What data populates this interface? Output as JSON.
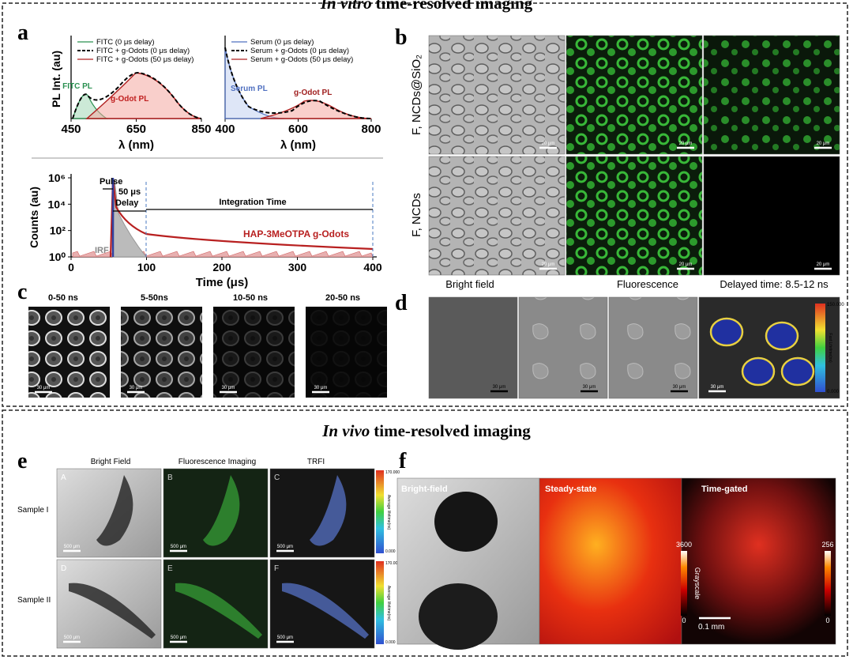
{
  "in_vitro_title": {
    "italic": "In vitro",
    "rest": "time-resolved imaging"
  },
  "in_vivo_title": {
    "italic": "In vivo",
    "rest": "time-resolved imaging"
  },
  "panel_a": {
    "label": "a",
    "spectrum_1": {
      "y_label": "PL Int. (au)",
      "x_label": "λ (nm)",
      "xticks": [
        "450",
        "650",
        "850"
      ],
      "legend": [
        "FITC (0 μs delay)",
        "FITC + g-Odots (0 μs delay)",
        "FITC + g-Odots (50 μs delay)"
      ],
      "annotations": [
        "FITC PL",
        "g-Odot PL"
      ]
    },
    "spectrum_2": {
      "x_label": "λ (nm)",
      "xticks": [
        "400",
        "600",
        "800"
      ],
      "legend": [
        "Serum (0 μs delay)",
        "Serum + g-Odots (0 μs delay)",
        "Serum + g-Odots (50 μs delay)"
      ],
      "annotations": [
        "Serum PL",
        "g-Odot PL"
      ]
    },
    "decay": {
      "y_label": "Counts (au)",
      "x_label": "Time (μs)",
      "xticks": [
        "0",
        "100",
        "200",
        "300",
        "400"
      ],
      "yticks": [
        "10⁰",
        "10²",
        "10⁴",
        "10⁶"
      ],
      "annotations": [
        "Pulse",
        "50 μs",
        "Delay",
        "Integration Time",
        "HAP-3MeOTPA g-Odots",
        "IRF"
      ]
    }
  },
  "panel_b": {
    "label": "b",
    "row_labels": [
      "F, NCDs@SiO₂",
      "F, NCDs"
    ],
    "scale_bar": "20 μm"
  },
  "panel_c": {
    "label": "c",
    "column_labels": [
      "0-50 ns",
      "5-50ns",
      "10-50 ns",
      "20-50 ns"
    ],
    "scale_bar": "30 μm"
  },
  "panel_d": {
    "label": "d",
    "column_labels": [
      "Bright field",
      "Fluorescence",
      "Delayed time: 8.5-12 ns"
    ],
    "scale_bar": "30 μm",
    "colorbar": [
      "150.000",
      "0.000"
    ],
    "colorbar_title": "Fast Lifetime(ns)"
  },
  "panel_e": {
    "label": "e",
    "column_labels": [
      "Bright Field",
      "Fluorescence Imaging",
      "TRFI"
    ],
    "row_labels": [
      "Sample I",
      "Sample II"
    ],
    "image_letters": [
      "A",
      "B",
      "C",
      "D",
      "E",
      "F"
    ],
    "scale_bar": "500 μm",
    "colorbar": [
      "170.000",
      "0.000"
    ],
    "colorbar_title": "Average lifetime(ns)"
  },
  "panel_f": {
    "label": "f",
    "column_labels": [
      "Bright-field",
      "Steady-state",
      "Time-gated"
    ],
    "colorbar_1": [
      "3600",
      "0"
    ],
    "colorbar_2": [
      "256",
      "0"
    ],
    "colorbar_title": "Grayscale",
    "scale_bar": "0.1 mm"
  }
}
